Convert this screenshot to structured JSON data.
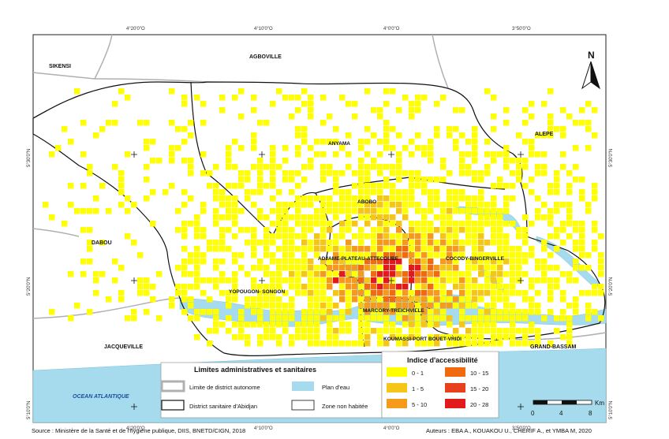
{
  "coordinates": {
    "top": [
      "4°20'0\"O",
      "4°10'0\"O",
      "4°0'0\"O",
      "3°50'0\"O"
    ],
    "bottom": [
      "4°20'0\"O",
      "4°10'0\"O",
      "4°0'0\"O",
      "3°50'0\"O"
    ],
    "left": [
      "5°30'0\"N",
      "5°20'0\"N",
      "5°10'0\"N"
    ],
    "right": [
      "5°30'0\"N",
      "5°20'0\"N",
      "5°10'0\"N"
    ]
  },
  "places": {
    "sikensi": "SIKENSI",
    "agboville": "AGBOVILLE",
    "alepe": "ALEPE",
    "dabou": "DABOU",
    "jacqueville": "JACQUEVILLE",
    "grand_bassam": "GRAND-BASSAM",
    "ocean": "OCEAN  ATLANTIQUE"
  },
  "districts": {
    "anyama": "ANYAMA",
    "abobo": "ABOBO",
    "adjame": "ADJAME-PLATEAU-ATTECOUBE",
    "cocody": "COCODY-BINGERVILLE",
    "yopougon": "YOPOUGON- SONGON",
    "marcory": "MARCORY-TREICHVILLE",
    "koumassi": "KOUMASSI-PORT BOUET-VRIDI"
  },
  "north_label": "N",
  "legend_admin": {
    "title": "Limites administratives et sanitaires",
    "items": [
      {
        "label": "Limite de district autonome",
        "color": "#b0b0b0"
      },
      {
        "label": "Plan d'eau",
        "color": "#a6dbed"
      },
      {
        "label": "District sanitaire d'Abidjan",
        "color": "#ffffff"
      },
      {
        "label": "Zone non habitée",
        "color": "#ffffff"
      }
    ]
  },
  "legend_index": {
    "title": "Indice d'accessibilité",
    "items": [
      {
        "label": "0 - 1",
        "color": "#ffff00"
      },
      {
        "label": "10 - 15",
        "color": "#f06b10"
      },
      {
        "label": "1 - 5",
        "color": "#f5c518"
      },
      {
        "label": "15 - 20",
        "color": "#e8401c"
      },
      {
        "label": "5 - 10",
        "color": "#f59a1a"
      },
      {
        "label": "20 - 28",
        "color": "#e31a1c"
      }
    ]
  },
  "scale": {
    "ticks": [
      "0",
      "4",
      "8"
    ],
    "unit": "Km"
  },
  "credits": {
    "source": "Source : Ministère de la Santé et de l'hygiène publique, DIIS, BNETD/CIGN, 2018",
    "authors": "Auteurs : EBA A., KOUAKOU U., CHERIF A., et YMBA M, 2020"
  },
  "colors": {
    "water": "#a6dbed",
    "land": "#ffffff",
    "boundary": "#b0b0b0"
  }
}
